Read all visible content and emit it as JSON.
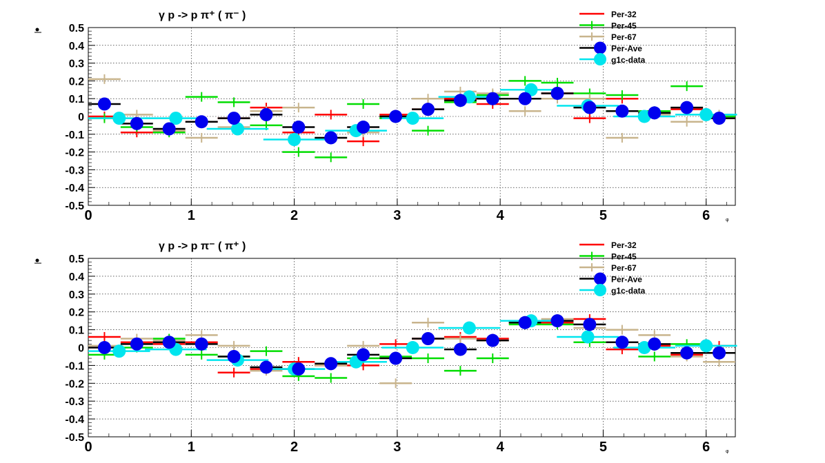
{
  "colors": {
    "Per-32": "#ff0000",
    "Per-45": "#00dd00",
    "Per-67": "#c8b48c",
    "Per-Ave": "#000000",
    "marker_ave": "#0000ee",
    "g1c-data": "#00e5ee"
  },
  "chart_data": [
    {
      "type": "scatter",
      "title": "γ p -> p π⁺ ( π⁻ )",
      "xlabel": "φ",
      "ylabel": "",
      "xlim": [
        0,
        6.2832
      ],
      "ylim": [
        -0.5,
        0.5
      ],
      "grid": true,
      "xticks": [
        "0",
        "1",
        "2",
        "3",
        "4",
        "5",
        "6"
      ],
      "yticks": [
        "-0.5",
        "-0.4",
        "-0.3",
        "-0.2",
        "-0.1",
        "0",
        "0.1",
        "0.2",
        "0.3",
        "0.4",
        "0.5"
      ],
      "legend": [
        "Per-32",
        "Per-45",
        "Per-67",
        "Per-Ave",
        "g1c-data"
      ],
      "legend_position": "top-right",
      "x": [
        0.157,
        0.471,
        0.785,
        1.1,
        1.414,
        1.728,
        2.042,
        2.356,
        2.67,
        2.985,
        3.299,
        3.613,
        3.927,
        4.241,
        4.555,
        4.869,
        5.184,
        5.498,
        5.812,
        6.126
      ],
      "series": [
        {
          "name": "Per-32",
          "values": [
            0.0,
            -0.09,
            -0.08,
            -0.03,
            -0.01,
            0.05,
            -0.09,
            0.01,
            -0.14,
            0.01,
            0.04,
            0.1,
            0.07,
            0.1,
            0.13,
            -0.01,
            0.1,
            0.02,
            0.04,
            -0.01
          ]
        },
        {
          "name": "Per-45",
          "values": [
            -0.01,
            -0.06,
            -0.09,
            0.11,
            0.08,
            -0.05,
            -0.2,
            -0.23,
            0.07,
            -0.01,
            -0.08,
            0.08,
            0.12,
            0.2,
            0.19,
            0.13,
            0.12,
            0.03,
            0.17,
            0.0
          ]
        },
        {
          "name": "Per-67",
          "values": [
            0.21,
            0.01,
            -0.08,
            -0.12,
            -0.06,
            0.03,
            0.05,
            -0.12,
            -0.09,
            0.0,
            0.1,
            0.14,
            0.13,
            0.03,
            0.1,
            0.1,
            -0.12,
            0.01,
            -0.03,
            0.01
          ]
        },
        {
          "name": "Per-Ave",
          "values": [
            0.07,
            -0.04,
            -0.07,
            -0.03,
            -0.01,
            0.01,
            -0.06,
            -0.12,
            -0.06,
            0.0,
            0.04,
            0.09,
            0.1,
            0.1,
            0.13,
            0.05,
            0.03,
            0.02,
            0.05,
            -0.01
          ]
        }
      ],
      "g1c_data": {
        "name": "g1c-data",
        "x": [
          0.3,
          0.85,
          1.45,
          2.0,
          2.6,
          3.15,
          3.7,
          4.3,
          4.85,
          5.4,
          6.0
        ],
        "values": [
          -0.01,
          -0.01,
          -0.07,
          -0.13,
          -0.08,
          -0.01,
          0.11,
          0.15,
          0.06,
          0.0,
          0.01
        ]
      }
    },
    {
      "type": "scatter",
      "title": "γ p -> p π⁻ ( π⁺ )",
      "xlabel": "φ",
      "ylabel": "",
      "xlim": [
        0,
        6.2832
      ],
      "ylim": [
        -0.5,
        0.5
      ],
      "grid": true,
      "xticks": [
        "0",
        "1",
        "2",
        "3",
        "4",
        "5",
        "6"
      ],
      "yticks": [
        "-0.5",
        "-0.4",
        "-0.3",
        "-0.2",
        "-0.1",
        "0",
        "0.1",
        "0.2",
        "0.3",
        "0.4",
        "0.5"
      ],
      "legend": [
        "Per-32",
        "Per-45",
        "Per-67",
        "Per-Ave",
        "g1c-data"
      ],
      "legend_position": "top-right",
      "x": [
        0.157,
        0.471,
        0.785,
        1.1,
        1.414,
        1.728,
        2.042,
        2.356,
        2.67,
        2.985,
        3.299,
        3.613,
        3.927,
        4.241,
        4.555,
        4.869,
        5.184,
        5.498,
        5.812,
        6.126
      ],
      "series": [
        {
          "name": "Per-32",
          "values": [
            0.06,
            0.03,
            0.02,
            0.03,
            -0.14,
            -0.12,
            -0.08,
            -0.1,
            -0.1,
            0.02,
            0.05,
            0.06,
            0.05,
            0.14,
            0.14,
            0.16,
            -0.01,
            0.01,
            -0.04,
            0.01
          ]
        },
        {
          "name": "Per-45",
          "values": [
            -0.04,
            0.0,
            0.05,
            -0.04,
            -0.05,
            -0.02,
            -0.16,
            -0.17,
            -0.06,
            -0.05,
            -0.06,
            -0.13,
            -0.06,
            0.13,
            0.13,
            0.03,
            0.03,
            -0.05,
            0.02,
            -0.03
          ]
        },
        {
          "name": "Per-67",
          "values": [
            0.01,
            0.05,
            0.04,
            0.07,
            0.01,
            -0.13,
            -0.12,
            -0.1,
            0.01,
            -0.2,
            0.14,
            0.05,
            0.04,
            0.15,
            0.16,
            0.11,
            0.1,
            0.07,
            -0.05,
            -0.08
          ]
        },
        {
          "name": "Per-Ave",
          "values": [
            0.0,
            0.02,
            0.03,
            0.02,
            -0.05,
            -0.11,
            -0.12,
            -0.09,
            -0.04,
            -0.06,
            0.05,
            -0.01,
            0.04,
            0.14,
            0.15,
            0.13,
            0.03,
            0.02,
            -0.03,
            -0.03
          ]
        }
      ],
      "g1c_data": {
        "name": "g1c-data",
        "x": [
          0.3,
          0.85,
          1.45,
          2.0,
          2.6,
          3.15,
          3.7,
          4.3,
          4.85,
          5.4,
          6.0
        ],
        "values": [
          -0.02,
          -0.01,
          -0.07,
          -0.12,
          -0.08,
          0.0,
          0.11,
          0.15,
          0.06,
          0.0,
          0.01
        ]
      }
    }
  ]
}
